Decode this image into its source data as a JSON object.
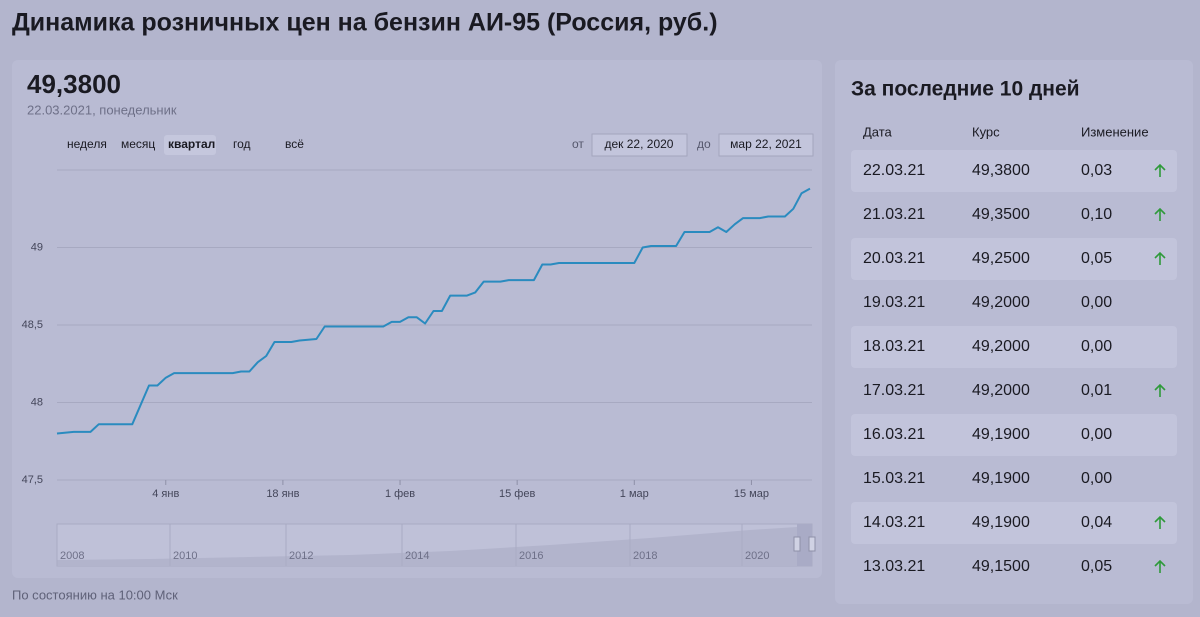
{
  "header": {
    "title": "Динамика розничных цен на бензин АИ-95 (Россия, руб.)",
    "value": "49,3800",
    "date": "22.03.2021, понедельник"
  },
  "periods": [
    "неделя",
    "месяц",
    "квартал",
    "год",
    "всё"
  ],
  "selected_period": 2,
  "range": {
    "from_label": "от",
    "from": "дек 22, 2020",
    "to_label": "до",
    "to": "мар 22, 2021"
  },
  "chart_data": {
    "type": "line",
    "color": "#2a8bbf",
    "grid": true,
    "x": [
      "2020-12-22",
      "2020-12-24",
      "2020-12-26",
      "2020-12-27",
      "2020-12-31",
      "2021-01-02",
      "2021-01-03",
      "2021-01-04",
      "2021-01-05",
      "2021-01-12",
      "2021-01-13",
      "2021-01-14",
      "2021-01-15",
      "2021-01-16",
      "2021-01-17",
      "2021-01-19",
      "2021-01-20",
      "2021-01-22",
      "2021-01-23",
      "2021-01-30",
      "2021-01-31",
      "2021-02-01",
      "2021-02-02",
      "2021-02-03",
      "2021-02-04",
      "2021-02-05",
      "2021-02-06",
      "2021-02-07",
      "2021-02-09",
      "2021-02-10",
      "2021-02-11",
      "2021-02-13",
      "2021-02-14",
      "2021-02-17",
      "2021-02-18",
      "2021-02-19",
      "2021-02-20",
      "2021-03-01",
      "2021-03-02",
      "2021-03-03",
      "2021-03-06",
      "2021-03-07",
      "2021-03-10",
      "2021-03-11",
      "2021-03-12",
      "2021-03-13",
      "2021-03-14",
      "2021-03-16",
      "2021-03-17",
      "2021-03-19",
      "2021-03-20",
      "2021-03-21",
      "2021-03-22"
    ],
    "values": [
      47.8,
      47.81,
      47.81,
      47.86,
      47.86,
      48.11,
      48.11,
      48.16,
      48.19,
      48.19,
      48.2,
      48.2,
      48.26,
      48.3,
      48.39,
      48.39,
      48.4,
      48.41,
      48.49,
      48.49,
      48.52,
      48.52,
      48.55,
      48.55,
      48.51,
      48.59,
      48.59,
      48.69,
      48.69,
      48.71,
      48.78,
      48.78,
      48.79,
      48.79,
      48.89,
      48.89,
      48.9,
      48.9,
      49.0,
      49.01,
      49.01,
      49.1,
      49.1,
      49.13,
      49.1,
      49.15,
      49.19,
      49.19,
      49.2,
      49.2,
      49.25,
      49.35,
      49.38
    ],
    "xlim": [
      "2020-12-22",
      "2021-03-22"
    ],
    "xticks": [
      {
        "value": "2021-01-04",
        "label": "4 янв"
      },
      {
        "value": "2021-01-18",
        "label": "18 янв"
      },
      {
        "value": "2021-02-01",
        "label": "1 фев"
      },
      {
        "value": "2021-02-15",
        "label": "15 фев"
      },
      {
        "value": "2021-03-01",
        "label": "1 мар"
      },
      {
        "value": "2021-03-15",
        "label": "15 мар"
      }
    ],
    "ylim": [
      47.5,
      49.5
    ],
    "yticks": [
      {
        "value": 47.5,
        "label": "47,5"
      },
      48,
      {
        "value": 48.5,
        "label": "48,5"
      },
      49
    ]
  },
  "navigator": {
    "years": [
      "2008",
      "2010",
      "2012",
      "2014",
      "2016",
      "2018",
      "2020"
    ]
  },
  "table": {
    "title": "За последние 10 дней",
    "columns": [
      "Дата",
      "Курс",
      "Изменение"
    ],
    "rows": [
      [
        "22.03.21",
        "49,3800",
        "0,03"
      ],
      [
        "21.03.21",
        "49,3500",
        "0,10"
      ],
      [
        "20.03.21",
        "49,2500",
        "0,05"
      ],
      [
        "19.03.21",
        "49,2000",
        "0,00"
      ],
      [
        "18.03.21",
        "49,2000",
        "0,00"
      ],
      [
        "17.03.21",
        "49,2000",
        "0,01"
      ],
      [
        "16.03.21",
        "49,1900",
        "0,00"
      ],
      [
        "15.03.21",
        "49,1900",
        "0,00"
      ],
      [
        "14.03.21",
        "49,1900",
        "0,04"
      ],
      [
        "13.03.21",
        "49,1500",
        "0,05"
      ]
    ]
  },
  "footer": "По состоянию на 10:00 Мск"
}
